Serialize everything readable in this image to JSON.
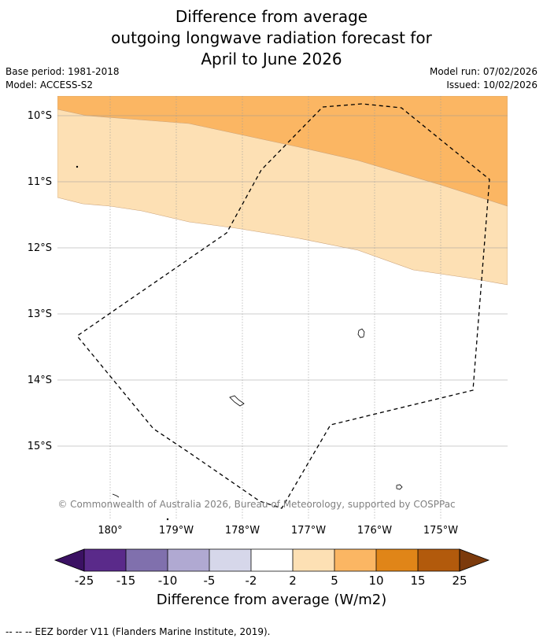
{
  "title": {
    "line1": "Difference from average",
    "line2": "outgoing longwave radiation forecast for",
    "line3": "April to June 2026"
  },
  "meta": {
    "base_period": "Base period: 1981-2018",
    "model": "Model: ACCESS-S2",
    "model_run": "Model run: 07/02/2026",
    "issued": "Issued: 10/02/2026"
  },
  "map": {
    "lat_labels": [
      "10°S",
      "11°S",
      "12°S",
      "13°S",
      "14°S",
      "15°S"
    ],
    "lon_labels": [
      "180°",
      "179°W",
      "178°W",
      "177°W",
      "176°W",
      "175°W"
    ],
    "attribution": "© Commonwealth of Australia 2026, Bureau of Meteorology, supported by COSPPac"
  },
  "colorbar": {
    "ticks": [
      "-25",
      "-15",
      "-10",
      "-5",
      "-2",
      "2",
      "5",
      "10",
      "15",
      "25"
    ],
    "colors": [
      "#3b1163",
      "#5a2a8a",
      "#8070ad",
      "#b0a9d2",
      "#d6d7ea",
      "#ffffff",
      "#fde0b4",
      "#fbb663",
      "#e08518",
      "#b25a0c",
      "#7c3a0c"
    ],
    "label": "Difference from average (W/m2)"
  },
  "footnote": "--  --  -- EEZ border V11 (Flanders Marine Institute, 2019)."
}
